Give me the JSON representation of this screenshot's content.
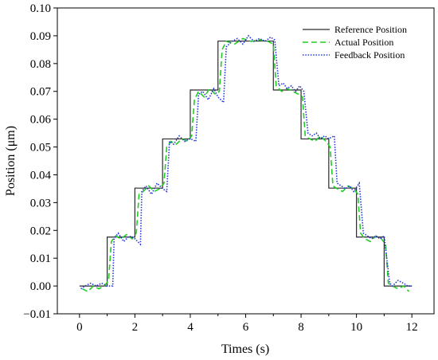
{
  "chart_data": {
    "type": "line",
    "xlabel": "Times (s)",
    "ylabel": "Position (μm)",
    "xlim": [
      -0.8,
      12.8
    ],
    "ylim": [
      -0.01,
      0.1
    ],
    "xticks": [
      0,
      2,
      4,
      6,
      8,
      10,
      12
    ],
    "yticks": [
      -0.01,
      0.0,
      0.01,
      0.02,
      0.03,
      0.04,
      0.05,
      0.06,
      0.07,
      0.08,
      0.09,
      0.1
    ],
    "ytick_labels": [
      "−0.01",
      "0.00",
      "0.01",
      "0.02",
      "0.03",
      "0.04",
      "0.05",
      "0.06",
      "0.07",
      "0.08",
      "0.09",
      "0.10"
    ],
    "grid": false,
    "legend": "top-right",
    "series": [
      {
        "name": "Reference Position",
        "color": "#2b2b2b",
        "style": "solid",
        "x": [
          0,
          1,
          1,
          2,
          2,
          3,
          3,
          4,
          4,
          5,
          5,
          7,
          7,
          8,
          8,
          9,
          9,
          10,
          10,
          11,
          11,
          12
        ],
        "y": [
          0,
          0,
          0.0176,
          0.0176,
          0.0352,
          0.0352,
          0.0529,
          0.0529,
          0.0705,
          0.0705,
          0.0881,
          0.0881,
          0.0705,
          0.0705,
          0.0529,
          0.0529,
          0.0352,
          0.0352,
          0.0176,
          0.0176,
          0,
          0
        ]
      },
      {
        "name": "Actual Position",
        "color": "#22cc22",
        "style": "dashed",
        "x": [
          0.1,
          0.3,
          0.5,
          0.7,
          0.9,
          1.05,
          1.15,
          1.3,
          1.5,
          1.7,
          1.9,
          2.05,
          2.15,
          2.3,
          2.5,
          2.7,
          2.9,
          3.05,
          3.15,
          3.3,
          3.5,
          3.7,
          3.9,
          4.05,
          4.15,
          4.3,
          4.5,
          4.7,
          4.9,
          5.05,
          5.15,
          5.3,
          5.6,
          5.9,
          6.2,
          6.5,
          6.8,
          7.0,
          7.1,
          7.3,
          7.5,
          7.7,
          7.9,
          8.05,
          8.15,
          8.3,
          8.5,
          8.7,
          8.9,
          9.05,
          9.15,
          9.3,
          9.5,
          9.7,
          9.9,
          10.05,
          10.15,
          10.3,
          10.5,
          10.7,
          10.9,
          11.05,
          11.15,
          11.3,
          11.5,
          11.7,
          11.9
        ],
        "y": [
          -0.001,
          -0.002,
          0.0,
          -0.001,
          0.0,
          0.002,
          0.016,
          0.018,
          0.017,
          0.0185,
          0.017,
          0.019,
          0.033,
          0.034,
          0.036,
          0.034,
          0.035,
          0.037,
          0.05,
          0.052,
          0.051,
          0.053,
          0.052,
          0.054,
          0.067,
          0.07,
          0.068,
          0.071,
          0.069,
          0.07,
          0.085,
          0.088,
          0.087,
          0.089,
          0.088,
          0.0885,
          0.088,
          0.087,
          0.072,
          0.07,
          0.071,
          0.07,
          0.069,
          0.068,
          0.054,
          0.053,
          0.052,
          0.054,
          0.052,
          0.05,
          0.036,
          0.035,
          0.034,
          0.036,
          0.035,
          0.033,
          0.019,
          0.017,
          0.016,
          0.018,
          0.017,
          0.015,
          0.001,
          0.0,
          -0.001,
          0.0,
          -0.002
        ]
      },
      {
        "name": "Feedback Position",
        "color": "#2233dd",
        "style": "dotted",
        "x": [
          0.05,
          0.2,
          0.4,
          0.6,
          0.8,
          1.0,
          1.2,
          1.25,
          1.4,
          1.6,
          1.8,
          2.0,
          2.2,
          2.25,
          2.4,
          2.6,
          2.8,
          3.0,
          3.15,
          3.25,
          3.4,
          3.6,
          3.8,
          4.0,
          4.2,
          4.3,
          4.45,
          4.65,
          4.85,
          5.0,
          5.2,
          5.3,
          5.5,
          5.7,
          5.9,
          6.1,
          6.3,
          6.5,
          6.7,
          6.9,
          7.05,
          7.2,
          7.35,
          7.5,
          7.65,
          7.8,
          7.95,
          8.1,
          8.25,
          8.4,
          8.55,
          8.7,
          8.85,
          9.0,
          9.2,
          9.3,
          9.45,
          9.6,
          9.75,
          9.9,
          10.1,
          10.25,
          10.4,
          10.55,
          10.7,
          10.85,
          11.0,
          11.2,
          11.3,
          11.5,
          11.7,
          11.85,
          12.0
        ],
        "y": [
          -0.001,
          0.0,
          0.001,
          0.0,
          0.001,
          0.0,
          0.0,
          0.017,
          0.019,
          0.016,
          0.018,
          0.017,
          0.015,
          0.034,
          0.036,
          0.033,
          0.037,
          0.035,
          0.034,
          0.052,
          0.051,
          0.054,
          0.052,
          0.053,
          0.052,
          0.069,
          0.07,
          0.067,
          0.071,
          0.068,
          0.066,
          0.086,
          0.088,
          0.089,
          0.087,
          0.09,
          0.088,
          0.089,
          0.088,
          0.0895,
          0.0885,
          0.072,
          0.073,
          0.071,
          0.072,
          0.07,
          0.072,
          0.07,
          0.055,
          0.054,
          0.055,
          0.053,
          0.054,
          0.053,
          0.054,
          0.037,
          0.036,
          0.035,
          0.036,
          0.034,
          0.037,
          0.019,
          0.018,
          0.017,
          0.018,
          0.017,
          0.018,
          0.001,
          0.0,
          0.002,
          0.001,
          0.0,
          0.0
        ]
      }
    ]
  }
}
